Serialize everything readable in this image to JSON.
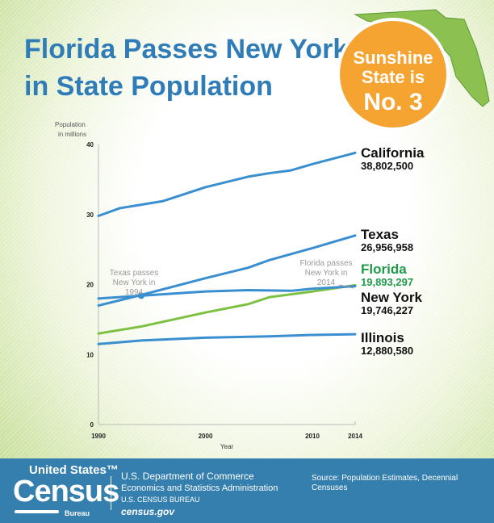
{
  "title": {
    "line1": "Florida Passes New York",
    "line2": "in State Population"
  },
  "badge": {
    "line1": "Sunshine",
    "line2": "State is",
    "line3": "No. 3",
    "color": "#f6a431"
  },
  "chart_data": {
    "type": "line",
    "ylabel": "Population in millions",
    "xlabel": "Year",
    "ylim": [
      0,
      40
    ],
    "xlim": [
      1990,
      2014
    ],
    "yticks": [
      0,
      10,
      20,
      30,
      40
    ],
    "xticks": [
      1990,
      2000,
      2010,
      2014
    ],
    "grid": false,
    "series": [
      {
        "name": "California",
        "final_label": "38,802,500",
        "color": "#3a8fd0",
        "x": [
          1990,
          1992,
          1994,
          1996,
          2000,
          2004,
          2006,
          2008,
          2010,
          2014
        ],
        "y": [
          29.8,
          30.9,
          31.4,
          31.9,
          33.9,
          35.4,
          35.9,
          36.3,
          37.2,
          38.8
        ]
      },
      {
        "name": "Texas",
        "final_label": "26,956,958",
        "color": "#3a8fd0",
        "x": [
          1990,
          1994,
          2000,
          2004,
          2006,
          2010,
          2014
        ],
        "y": [
          17.0,
          18.5,
          20.9,
          22.4,
          23.5,
          25.2,
          27.0
        ]
      },
      {
        "name": "Florida",
        "final_label": "19,893,297",
        "color": "#7dc142",
        "x": [
          1990,
          1994,
          2000,
          2004,
          2006,
          2010,
          2014
        ],
        "y": [
          13.0,
          14.0,
          16.0,
          17.2,
          18.2,
          19.0,
          19.9
        ]
      },
      {
        "name": "New York",
        "final_label": "19,746,227",
        "color": "#3a8fd0",
        "x": [
          1990,
          1994,
          2000,
          2004,
          2008,
          2010,
          2014
        ],
        "y": [
          18.0,
          18.4,
          19.0,
          19.2,
          19.1,
          19.4,
          19.75
        ]
      },
      {
        "name": "Illinois",
        "final_label": "12,880,580",
        "color": "#3a8fd0",
        "x": [
          1990,
          1994,
          2000,
          2006,
          2010,
          2014
        ],
        "y": [
          11.5,
          12.0,
          12.4,
          12.6,
          12.8,
          12.9
        ]
      }
    ],
    "annotations": [
      {
        "text": [
          "Texas passes",
          "New York in",
          "1994"
        ],
        "x": 1994,
        "y": 18.4
      },
      {
        "text": [
          "Florida passes",
          "New York in",
          "2014"
        ],
        "x": 2014,
        "y": 19.8
      }
    ]
  },
  "footer": {
    "logo_top": "United States™",
    "logo_main": "Census",
    "logo_bottom": "Bureau",
    "dept": "U.S. Department of Commerce",
    "admin": "Economics and Statistics Administration",
    "bureau": "U.S. CENSUS BUREAU",
    "site": "census.gov",
    "source": "Source: Population Estimates, Decennial Censuses"
  }
}
